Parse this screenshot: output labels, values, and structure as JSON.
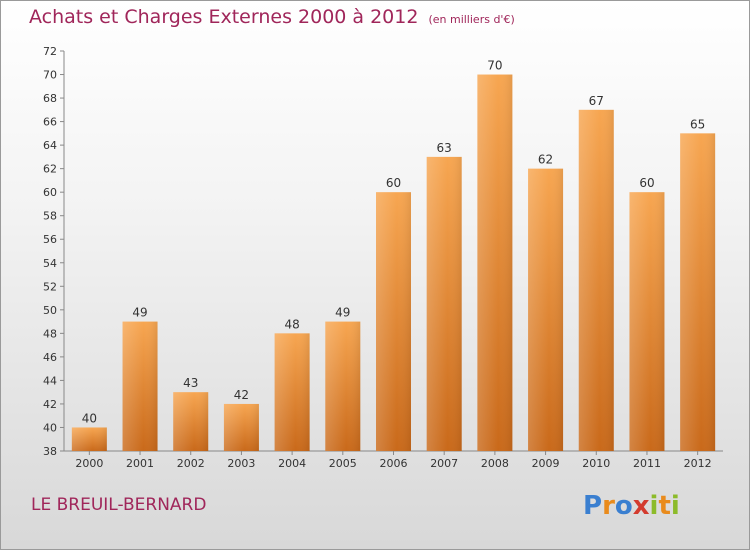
{
  "title": "Achats et Charges Externes 2000 à 2012",
  "subtitle": "(en milliers d'€)",
  "commune": "LE BREUIL-BERNARD",
  "logo": {
    "letters": [
      "P",
      "r",
      "o",
      "x",
      "i",
      "t",
      "i"
    ],
    "colors": [
      "#3a7fd0",
      "#e98b1c",
      "#3a7fd0",
      "#d33b2e",
      "#8cbb2a",
      "#e98b1c",
      "#8cbb2a"
    ]
  },
  "chart_data": {
    "type": "bar",
    "title": "Achats et Charges Externes 2000 à 2012",
    "subtitle": "(en milliers d'€)",
    "categories": [
      "2000",
      "2001",
      "2002",
      "2003",
      "2004",
      "2005",
      "2006",
      "2007",
      "2008",
      "2009",
      "2010",
      "2011",
      "2012"
    ],
    "values": [
      40,
      49,
      43,
      42,
      48,
      49,
      60,
      63,
      70,
      62,
      67,
      60,
      65
    ],
    "ylim": [
      38,
      72
    ],
    "yticks": [
      38,
      40,
      42,
      44,
      46,
      48,
      50,
      52,
      54,
      56,
      58,
      60,
      62,
      64,
      66,
      68,
      70,
      72
    ],
    "grid": false,
    "colors": {
      "bar_top": "#f7a651",
      "bar_bottom": "#c9691a",
      "axis": "#888888",
      "text": "#333333",
      "accent": "#a0265a"
    }
  }
}
